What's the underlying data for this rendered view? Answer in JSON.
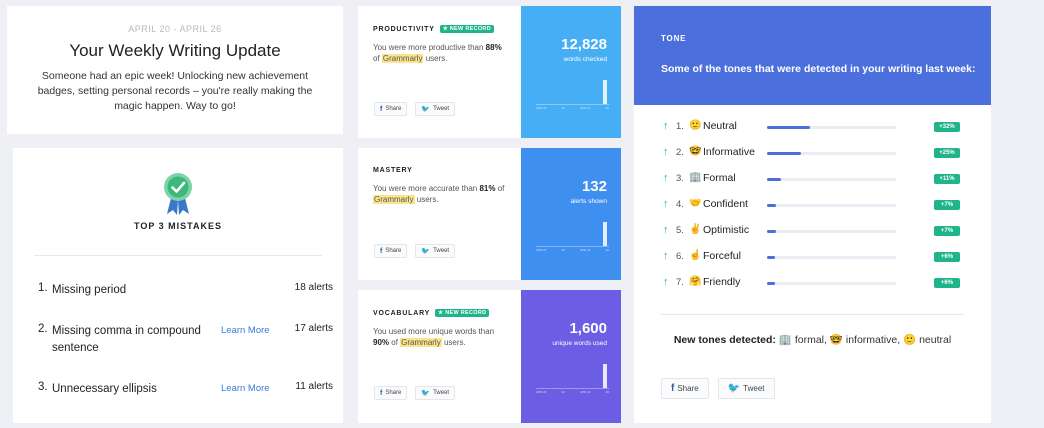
{
  "header": {
    "dates": "APRIL 20 - APRIL 26",
    "title": "Your Weekly Writing Update",
    "description": "Someone had an epic week! Unlocking new achievement badges, setting personal records – you're really making the magic happen. Way to go!"
  },
  "mistakes": {
    "title": "TOP 3 MISTAKES",
    "badge_icon": "award-ribbon-icon",
    "items": [
      {
        "num": "1.",
        "text": "Missing period",
        "learn_more": "",
        "count": "18 alerts"
      },
      {
        "num": "2.",
        "text": "Missing comma in compound sentence",
        "learn_more": "Learn More",
        "count": "17 alerts"
      },
      {
        "num": "3.",
        "text": "Unnecessary ellipsis",
        "learn_more": "Learn More",
        "count": "11 alerts"
      }
    ]
  },
  "stats": [
    {
      "label": "PRODUCTIVITY",
      "record": "★ NEW RECORD",
      "text_pre": "You were more productive than",
      "pct": "88%",
      "text_of": "of",
      "brand": "Grammarly",
      "text_post": "users.",
      "value": "12,828",
      "value_label": "words checked",
      "color": "#46aef5",
      "share": "Share",
      "tweet": "Tweet",
      "ticks": [
        "APR 20",
        "22",
        "APR 24",
        "26"
      ],
      "last_bar_level": 0.7
    },
    {
      "label": "MASTERY",
      "record": "",
      "text_pre": "You were more accurate than",
      "pct": "81%",
      "text_of": "of",
      "brand": "Grammarly",
      "text_post": "users.",
      "value": "132",
      "value_label": "alerts shown",
      "color": "#3f8ff0",
      "share": "Share",
      "tweet": "Tweet",
      "ticks": [
        "APR 20",
        "22",
        "APR 24",
        "26"
      ],
      "last_bar_level": 0.7
    },
    {
      "label": "VOCABULARY",
      "record": "★ NEW RECORD",
      "text_pre": "You used more unique words than",
      "pct": "90%",
      "text_of": "of",
      "brand": "Grammarly",
      "text_post": "users.",
      "value": "1,600",
      "value_label": "unique words used",
      "color": "#6b5ee4",
      "share": "Share",
      "tweet": "Tweet",
      "ticks": [
        "APR 20",
        "22",
        "APR 24",
        "26"
      ],
      "last_bar_level": 0.7
    }
  ],
  "tone": {
    "label": "TONE",
    "subtitle": "Some of the tones that were detected in your writing last week:",
    "accent": "#4c6fde",
    "items": [
      {
        "rank": "1.",
        "emoji": "🙂",
        "name": "Neutral",
        "value": "32",
        "change": "+32%",
        "level": 0.33
      },
      {
        "rank": "2.",
        "emoji": "🤓",
        "name": "Informative",
        "value": "25",
        "change": "+25%",
        "level": 0.26
      },
      {
        "rank": "3.",
        "emoji": "🏢",
        "name": "Formal",
        "value": "11",
        "change": "+11%",
        "level": 0.11
      },
      {
        "rank": "4.",
        "emoji": "🤝",
        "name": "Confident",
        "value": "7",
        "change": "+7%",
        "level": 0.07
      },
      {
        "rank": "5.",
        "emoji": "✌️",
        "name": "Optimistic",
        "value": "7",
        "change": "+7%",
        "level": 0.07
      },
      {
        "rank": "6.",
        "emoji": "☝️",
        "name": "Forceful",
        "value": "6",
        "change": "+6%",
        "level": 0.06
      },
      {
        "rank": "7.",
        "emoji": "🤗",
        "name": "Friendly",
        "value": "6",
        "change": "+6%",
        "level": 0.06
      }
    ],
    "new_label": "New tones detected:",
    "new_tones": [
      {
        "emoji": "🏢",
        "name": "formal,"
      },
      {
        "emoji": "🤓",
        "name": "informative,"
      },
      {
        "emoji": "🙂",
        "name": "neutral"
      }
    ],
    "share": "Share",
    "tweet": "Tweet"
  }
}
